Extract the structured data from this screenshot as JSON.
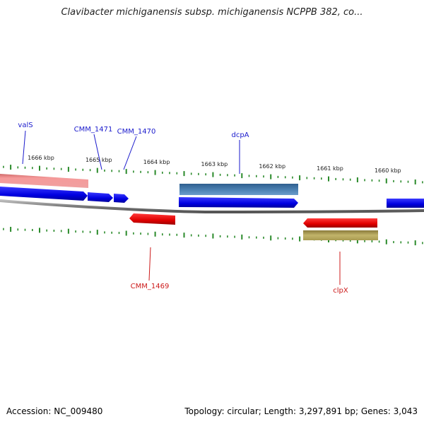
{
  "title": "Clavibacter michiganensis subsp. michiganensis NCPPB 382, co...",
  "footer": {
    "accession": "Accession: NC_009480",
    "topology": "Topology: circular; Length: 3,297,891 bp; Genes: 3,043"
  },
  "axis": {
    "ticks": [
      {
        "kbp": 1666,
        "label": "1666 kbp"
      },
      {
        "kbp": 1665,
        "label": "1665 kbp"
      },
      {
        "kbp": 1664,
        "label": "1664 kbp"
      },
      {
        "kbp": 1663,
        "label": "1663 kbp"
      },
      {
        "kbp": 1662,
        "label": "1662 kbp"
      },
      {
        "kbp": 1661,
        "label": "1661 kbp"
      },
      {
        "kbp": 1660,
        "label": "1660 kbp"
      }
    ]
  },
  "features": [
    {
      "label": "valS",
      "strand": "plus",
      "color": "#1a1acc"
    },
    {
      "label": "CMM_1471",
      "strand": "plus",
      "color": "#1a1acc"
    },
    {
      "label": "CMM_1470",
      "strand": "plus",
      "color": "#1a1acc"
    },
    {
      "label": "dcpA",
      "strand": "plus",
      "color": "#1a1acc"
    },
    {
      "label": "CMM_1469",
      "strand": "minus",
      "color": "#cc1a1a"
    },
    {
      "label": "clpX",
      "strand": "minus",
      "color": "#cc1a1a"
    }
  ],
  "colors": {
    "forward_cds": "#0000ee",
    "reverse_cds": "#ee0000",
    "forward_gene": "#f08a8a",
    "forward_rna": "#4a7fb0",
    "reverse_gene": "#b8aa60",
    "backbone": "#888888",
    "ticks": "#2a8a2a"
  }
}
